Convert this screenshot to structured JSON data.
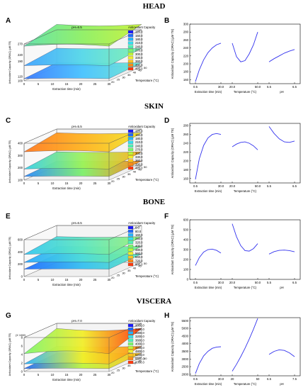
{
  "sections": [
    {
      "title": "HEAD"
    },
    {
      "title": "SKIN"
    },
    {
      "title": "BONE"
    },
    {
      "title": "VISCERA"
    }
  ],
  "chart_data": [
    {
      "type": "surface",
      "letter": "A",
      "title": "pH=6.5",
      "xlabel": "Extraction time (min)",
      "ylabel": "Temperature (°C)",
      "zlabel": "Antioxidant Capacity (ORAC) (µM TE)",
      "xticks": [
        "0",
        "5",
        "10",
        "15",
        "20",
        "25",
        "30"
      ],
      "yticks": [
        "20",
        "25",
        "30",
        "35",
        "40",
        "45",
        "50"
      ],
      "zticks": [
        "100",
        "120",
        "190",
        "220",
        "270"
      ],
      "legend_title": "Antioxidant Capacity",
      "legend_entries": [
        "120.0",
        "150.0",
        "180.0",
        "210.0",
        "240.0",
        "270.0",
        "300.0",
        "330.0",
        "360.0",
        "390.0",
        "420.0"
      ],
      "legend_colors": [
        "#1a1aff",
        "#1f6bff",
        "#26b4ff",
        "#35e0f0",
        "#4ff2b5",
        "#7ef56e",
        "#bff53a",
        "#f2ee2a",
        "#ffc21f",
        "#ff8a18",
        "#ff3a10"
      ],
      "surfaces": [
        {
          "z_level": 260,
          "z_rise": 35,
          "colors": [
            "#5fe2a8",
            "#8ef063",
            "#c7f23a"
          ]
        },
        {
          "z_level": 170,
          "z_rise": 15,
          "colors": [
            "#3fa3ff",
            "#55d8e8",
            "#7ef0b0"
          ]
        },
        {
          "z_level": 110,
          "z_rise": 8,
          "colors": [
            "#3a7bff",
            "#47c3ff",
            "#6fe7d0"
          ]
        }
      ]
    },
    {
      "type": "line",
      "letter": "B",
      "ylabel": "Antioxidant Capacity (ORAC) (µM TE)",
      "yticks": [
        "160",
        "180",
        "200",
        "220",
        "240",
        "260",
        "280",
        "300"
      ],
      "ylim": [
        150,
        300
      ],
      "groups": [
        {
          "label": "Extraction time (min)",
          "ticks": [
            "0.5",
            "30.0"
          ],
          "x": [
            0.5,
            5,
            10,
            15,
            20,
            25,
            30
          ],
          "y": [
            155,
            185,
            210,
            228,
            240,
            248,
            252
          ]
        },
        {
          "label": "Temperature (°C)",
          "ticks": [
            "20.0",
            "50.0"
          ],
          "x": [
            20,
            25,
            30,
            35,
            40,
            45,
            50
          ],
          "y": [
            252,
            218,
            205,
            208,
            225,
            248,
            280
          ]
        },
        {
          "label": "pH",
          "ticks": [
            "5.5",
            "6.5"
          ],
          "x": [
            5.5,
            5.7,
            5.9,
            6.1,
            6.3,
            6.5
          ],
          "y": [
            205,
            213,
            220,
            227,
            232,
            236
          ]
        }
      ]
    },
    {
      "type": "surface",
      "letter": "C",
      "title": "pH=5.5",
      "xlabel": "Extraction time (min)",
      "ylabel": "Temperature (°C)",
      "zlabel": "Antioxidant Capacity (ORAC) (µM TE)",
      "xticks": [
        "0",
        "5",
        "10",
        "15",
        "20",
        "25",
        "30"
      ],
      "yticks": [
        "20",
        "25",
        "30",
        "35",
        "40",
        "45",
        "50"
      ],
      "zticks": [
        "100",
        "200",
        "300",
        "400"
      ],
      "legend_title": "Antioxidant Capacity",
      "legend_entries": [
        "120.0",
        "150.0",
        "180.0",
        "210.0",
        "240.0",
        "270.0",
        "300.0",
        "330.0",
        "360.0",
        "390.0",
        "420.0"
      ],
      "legend_colors": [
        "#1a1aff",
        "#1f6bff",
        "#26b4ff",
        "#35e0f0",
        "#4ff2b5",
        "#7ef56e",
        "#bff53a",
        "#f2ee2a",
        "#ffc21f",
        "#ff8a18",
        "#ff3a10"
      ],
      "surfaces": [
        {
          "z_level": 330,
          "z_rise": 40,
          "colors": [
            "#ff7a20",
            "#ffb31f",
            "#f2e52a"
          ]
        },
        {
          "z_level": 190,
          "z_rise": 25,
          "colors": [
            "#35d0e8",
            "#9ef25a",
            "#ffb01f"
          ]
        },
        {
          "z_level": 130,
          "z_rise": 10,
          "colors": [
            "#2a8bff",
            "#7ef06a",
            "#ff8a18"
          ]
        }
      ]
    },
    {
      "type": "line",
      "letter": "D",
      "ylabel": "Antioxidant Capacity (ORAC) (µM TE)",
      "yticks": [
        "160",
        "180",
        "200",
        "220",
        "240",
        "260",
        "280"
      ],
      "ylim": [
        150,
        285
      ],
      "groups": [
        {
          "label": "Extraction time (min)",
          "ticks": [
            "0.5",
            "30.0"
          ],
          "x": [
            0.5,
            5,
            10,
            15,
            20,
            25,
            30
          ],
          "y": [
            158,
            205,
            235,
            252,
            260,
            262,
            260
          ]
        },
        {
          "label": "Temperature (°C)",
          "ticks": [
            "20.0",
            "50.0"
          ],
          "x": [
            20,
            25,
            30,
            35,
            40,
            45,
            50
          ],
          "y": [
            232,
            238,
            242,
            243,
            240,
            234,
            225
          ]
        },
        {
          "label": "",
          "ticks": [
            "5.5",
            "6.5"
          ],
          "x": [
            5.5,
            5.7,
            5.9,
            6.1,
            6.3,
            6.5
          ],
          "y": [
            278,
            262,
            250,
            243,
            242,
            245
          ]
        }
      ]
    },
    {
      "type": "surface",
      "letter": "E",
      "title": "pH=6.5",
      "xlabel": "Extraction time (min)",
      "ylabel": "Temperature (°C)",
      "zlabel": "Antioxidant Capacity (ORAC) (µM TE)",
      "xticks": [
        "0",
        "5",
        "10",
        "15",
        "20",
        "25",
        "30"
      ],
      "yticks": [
        "20",
        "25",
        "30",
        "35",
        "40",
        "45",
        "50"
      ],
      "zticks": [
        "0",
        "200",
        "400",
        "600"
      ],
      "legend_title": "Antioxidant Capacity",
      "legend_entries": [
        "0.0",
        "80.0",
        "160.0",
        "240.0",
        "320.0",
        "400.0",
        "480.0",
        "560.0",
        "640.0",
        "720.0",
        "800.0"
      ],
      "legend_colors": [
        "#1a1aff",
        "#1f6bff",
        "#26b4ff",
        "#35e0f0",
        "#4ff2b5",
        "#7ef56e",
        "#bff53a",
        "#f2ee2a",
        "#ffc21f",
        "#ff8a18",
        "#ff3a10"
      ],
      "surfaces": [
        {
          "z_level": 360,
          "z_rise": 60,
          "colors": [
            "#35c8f0",
            "#5ee6c0",
            "#9af07a"
          ]
        },
        {
          "z_level": 230,
          "z_rise": 30,
          "colors": [
            "#2aa8ff",
            "#4fdcd8",
            "#7af08a"
          ]
        },
        {
          "z_level": 120,
          "z_rise": 15,
          "colors": [
            "#1f6bff",
            "#35c0f0",
            "#5ee6c0"
          ]
        }
      ]
    },
    {
      "type": "line",
      "letter": "F",
      "ylabel": "Antioxidant Capacity (ORAC) (µM TE)",
      "yticks": [
        "0",
        "100",
        "200",
        "300",
        "400",
        "500",
        "600"
      ],
      "ylim": [
        0,
        600
      ],
      "groups": [
        {
          "label": "Extraction time (min)",
          "ticks": [
            "0.5",
            "30.0"
          ],
          "x": [
            0.5,
            5,
            10,
            15,
            20,
            25,
            30
          ],
          "y": [
            140,
            220,
            275,
            300,
            305,
            292,
            265
          ]
        },
        {
          "label": "Temperature (°C)",
          "ticks": [
            "20.0",
            "50.0"
          ],
          "x": [
            20,
            25,
            30,
            35,
            40,
            45,
            50
          ],
          "y": [
            560,
            430,
            340,
            290,
            285,
            310,
            360
          ]
        },
        {
          "label": "pH",
          "ticks": [
            "5.5",
            "6.5"
          ],
          "x": [
            5.5,
            5.7,
            5.9,
            6.1,
            6.3,
            6.5
          ],
          "y": [
            255,
            280,
            292,
            295,
            290,
            278
          ]
        }
      ]
    },
    {
      "type": "surface",
      "letter": "G",
      "title": "pH=7.0",
      "xlabel": "Extraction time (min)",
      "ylabel": "Temperature (°C)",
      "zlabel": "Antioxidant Capacity (ORAC) (µM TE)",
      "zunit": "(X 1000)",
      "xticks": [
        "0",
        "5",
        "10",
        "15",
        "20",
        "25",
        "30"
      ],
      "yticks": [
        "20",
        "25",
        "30",
        "35",
        "40",
        "45",
        "50"
      ],
      "zticks": [
        "0",
        "2",
        "4",
        "6",
        "8"
      ],
      "legend_title": "Antioxidant Capacity",
      "legend_entries": [
        "2000.0",
        "2400.0",
        "2800.0",
        "3200.0",
        "3600.0",
        "4000.0",
        "4400.0",
        "4800.0",
        "5200.0",
        "5600.0",
        "6000.0"
      ],
      "legend_colors": [
        "#1a1aff",
        "#1f6bff",
        "#26b4ff",
        "#35e0f0",
        "#4ff2b5",
        "#7ef56e",
        "#bff53a",
        "#f2ee2a",
        "#ffc21f",
        "#ff8a18",
        "#ff3a10"
      ],
      "surfaces": [
        {
          "z_level": 4.2,
          "z_rise": 2.6,
          "colors": [
            "#7ef56e",
            "#f2ee2a",
            "#ff3a10"
          ]
        },
        {
          "z_level": 1.8,
          "z_rise": 0.8,
          "colors": [
            "#26b4ff",
            "#f2ee2a",
            "#ff8a18"
          ]
        },
        {
          "z_level": 0.7,
          "z_rise": 0.3,
          "colors": [
            "#1f6bff",
            "#bff53a",
            "#ffc21f"
          ]
        }
      ]
    },
    {
      "type": "line",
      "letter": "H",
      "ylabel": "Antioxidant Capacity (ORAC) (µM TE)",
      "yticks": [
        "2000",
        "2500",
        "3000",
        "3500",
        "4000",
        "4500",
        "5000",
        "5500"
      ],
      "ylim": [
        1900,
        5700
      ],
      "groups": [
        {
          "label": "Extraction time (min)",
          "ticks": [
            "0.5",
            "30.0"
          ],
          "x": [
            0.5,
            5,
            10,
            15,
            20,
            25,
            30
          ],
          "y": [
            2050,
            2700,
            3200,
            3500,
            3700,
            3780,
            3800
          ]
        },
        {
          "label": "Temperature (°C)",
          "ticks": [
            "20",
            "50"
          ],
          "x": [
            20,
            25,
            30,
            35,
            40,
            45,
            50
          ],
          "y": [
            2200,
            2650,
            3150,
            3700,
            4300,
            4950,
            5650
          ]
        },
        {
          "label": "pH",
          "ticks": [
            "6.5",
            "7.5"
          ],
          "x": [
            6.5,
            6.7,
            6.9,
            7.1,
            7.3,
            7.5
          ],
          "y": [
            3300,
            3500,
            3600,
            3560,
            3400,
            3150
          ]
        }
      ]
    }
  ]
}
